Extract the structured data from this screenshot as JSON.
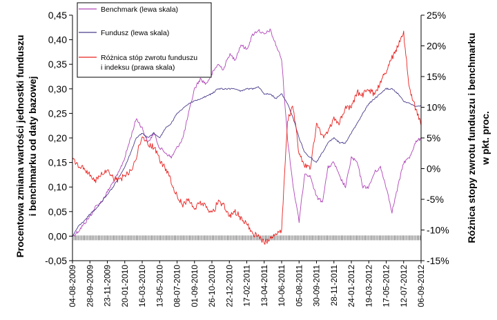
{
  "chart_data": {
    "type": "line",
    "left_axis": {
      "label_line1": "Procentowa zmiana wartości jednostki funduszu",
      "label_line2": "i benchmarku od daty bazowej",
      "range": [
        -0.05,
        0.45
      ],
      "ticks": [
        "-0,05",
        "0,00",
        "0,05",
        "0,10",
        "0,15",
        "0,20",
        "0,25",
        "0,30",
        "0,35",
        "0,40",
        "0,45"
      ]
    },
    "right_axis": {
      "label_line1": "Różnica stopy zwrotu funduszu i benchmarku",
      "label_line2": "w pkt. proc.",
      "range": [
        -15,
        25
      ],
      "ticks": [
        "-15%",
        "-10%",
        "-5%",
        "0%",
        "5%",
        "10%",
        "15%",
        "20%",
        "25%"
      ]
    },
    "x_axis": {
      "tick_labels": [
        "04-08-2009",
        "28-09-2009",
        "23-11-2009",
        "20-01-2010",
        "16-03-2010",
        "13-05-2010",
        "08-07-2010",
        "01-09-2010",
        "26-10-2010",
        "22-12-2010",
        "17-02-2011",
        "13-04-2011",
        "10-06-2011",
        "05-08-2011",
        "30-09-2011",
        "28-11-2011",
        "24-01-2012",
        "19-03-2012",
        "17-05-2012",
        "12-07-2012",
        "06-09-2012"
      ]
    },
    "legend": {
      "position": "top-left",
      "entries": [
        {
          "label": "Benchmark (lewa skala)",
          "color": "#b044b8"
        },
        {
          "label": "Fundusz (lewa skala)",
          "color": "#4a3c8c"
        },
        {
          "label_line1": "Różnica stóp zwrotu funduszu",
          "label_line2": "i indeksu (prawa skala)",
          "color": "#e8201e"
        }
      ]
    },
    "series": [
      {
        "name": "Benchmark",
        "axis": "left",
        "color": "#b044b8",
        "values": [
          0.0,
          0.01,
          0.025,
          0.04,
          0.06,
          0.07,
          0.09,
          0.11,
          0.13,
          0.16,
          0.2,
          0.24,
          0.22,
          0.19,
          0.21,
          0.18,
          0.17,
          0.16,
          0.18,
          0.2,
          0.25,
          0.3,
          0.32,
          0.31,
          0.33,
          0.35,
          0.34,
          0.37,
          0.36,
          0.39,
          0.38,
          0.41,
          0.42,
          0.41,
          0.42,
          0.39,
          0.36,
          0.2,
          0.1,
          0.03,
          0.13,
          0.12,
          0.08,
          0.07,
          0.14,
          0.15,
          0.12,
          0.1,
          0.16,
          0.15,
          0.1,
          0.1,
          0.13,
          0.14,
          0.1,
          0.05,
          0.1,
          0.15,
          0.16,
          0.19,
          0.2
        ]
      },
      {
        "name": "Fundusz",
        "axis": "left",
        "color": "#4a3c8c",
        "values": [
          0.0,
          0.02,
          0.03,
          0.045,
          0.055,
          0.07,
          0.085,
          0.1,
          0.12,
          0.14,
          0.17,
          0.2,
          0.21,
          0.2,
          0.21,
          0.2,
          0.22,
          0.23,
          0.25,
          0.26,
          0.27,
          0.275,
          0.28,
          0.285,
          0.29,
          0.3,
          0.3,
          0.3,
          0.3,
          0.295,
          0.3,
          0.3,
          0.305,
          0.29,
          0.29,
          0.28,
          0.29,
          0.27,
          0.24,
          0.2,
          0.17,
          0.16,
          0.15,
          0.17,
          0.19,
          0.2,
          0.19,
          0.19,
          0.21,
          0.23,
          0.25,
          0.27,
          0.28,
          0.29,
          0.3,
          0.3,
          0.29,
          0.275,
          0.27,
          0.265,
          0.265
        ]
      },
      {
        "name": "Różnica stóp zwrotu funduszu i indeksu",
        "axis": "right",
        "color": "#e8201e",
        "values": [
          1.5,
          0.5,
          0.0,
          -1.0,
          -2.0,
          -1.0,
          -0.5,
          -1.5,
          -2.0,
          -1.0,
          -0.5,
          2.0,
          5.5,
          4.0,
          3.5,
          1.5,
          0.0,
          -2.0,
          -4.5,
          -6.0,
          -5.0,
          -6.5,
          -5.5,
          -6.0,
          -7.5,
          -5.5,
          -6.0,
          -8.0,
          -7.0,
          -8.0,
          -9.0,
          -10.5,
          -11.0,
          -12.0,
          -11.5,
          -10.5,
          -10.0,
          8.0,
          10.0,
          2.5,
          0.5,
          0.0,
          7.5,
          5.0,
          6.0,
          8.0,
          7.5,
          10.0,
          10.0,
          12.5,
          12.0,
          13.0,
          12.0,
          14.0,
          16.0,
          18.0,
          20.0,
          22.0,
          13.0,
          10.0,
          7.0
        ]
      }
    ]
  }
}
